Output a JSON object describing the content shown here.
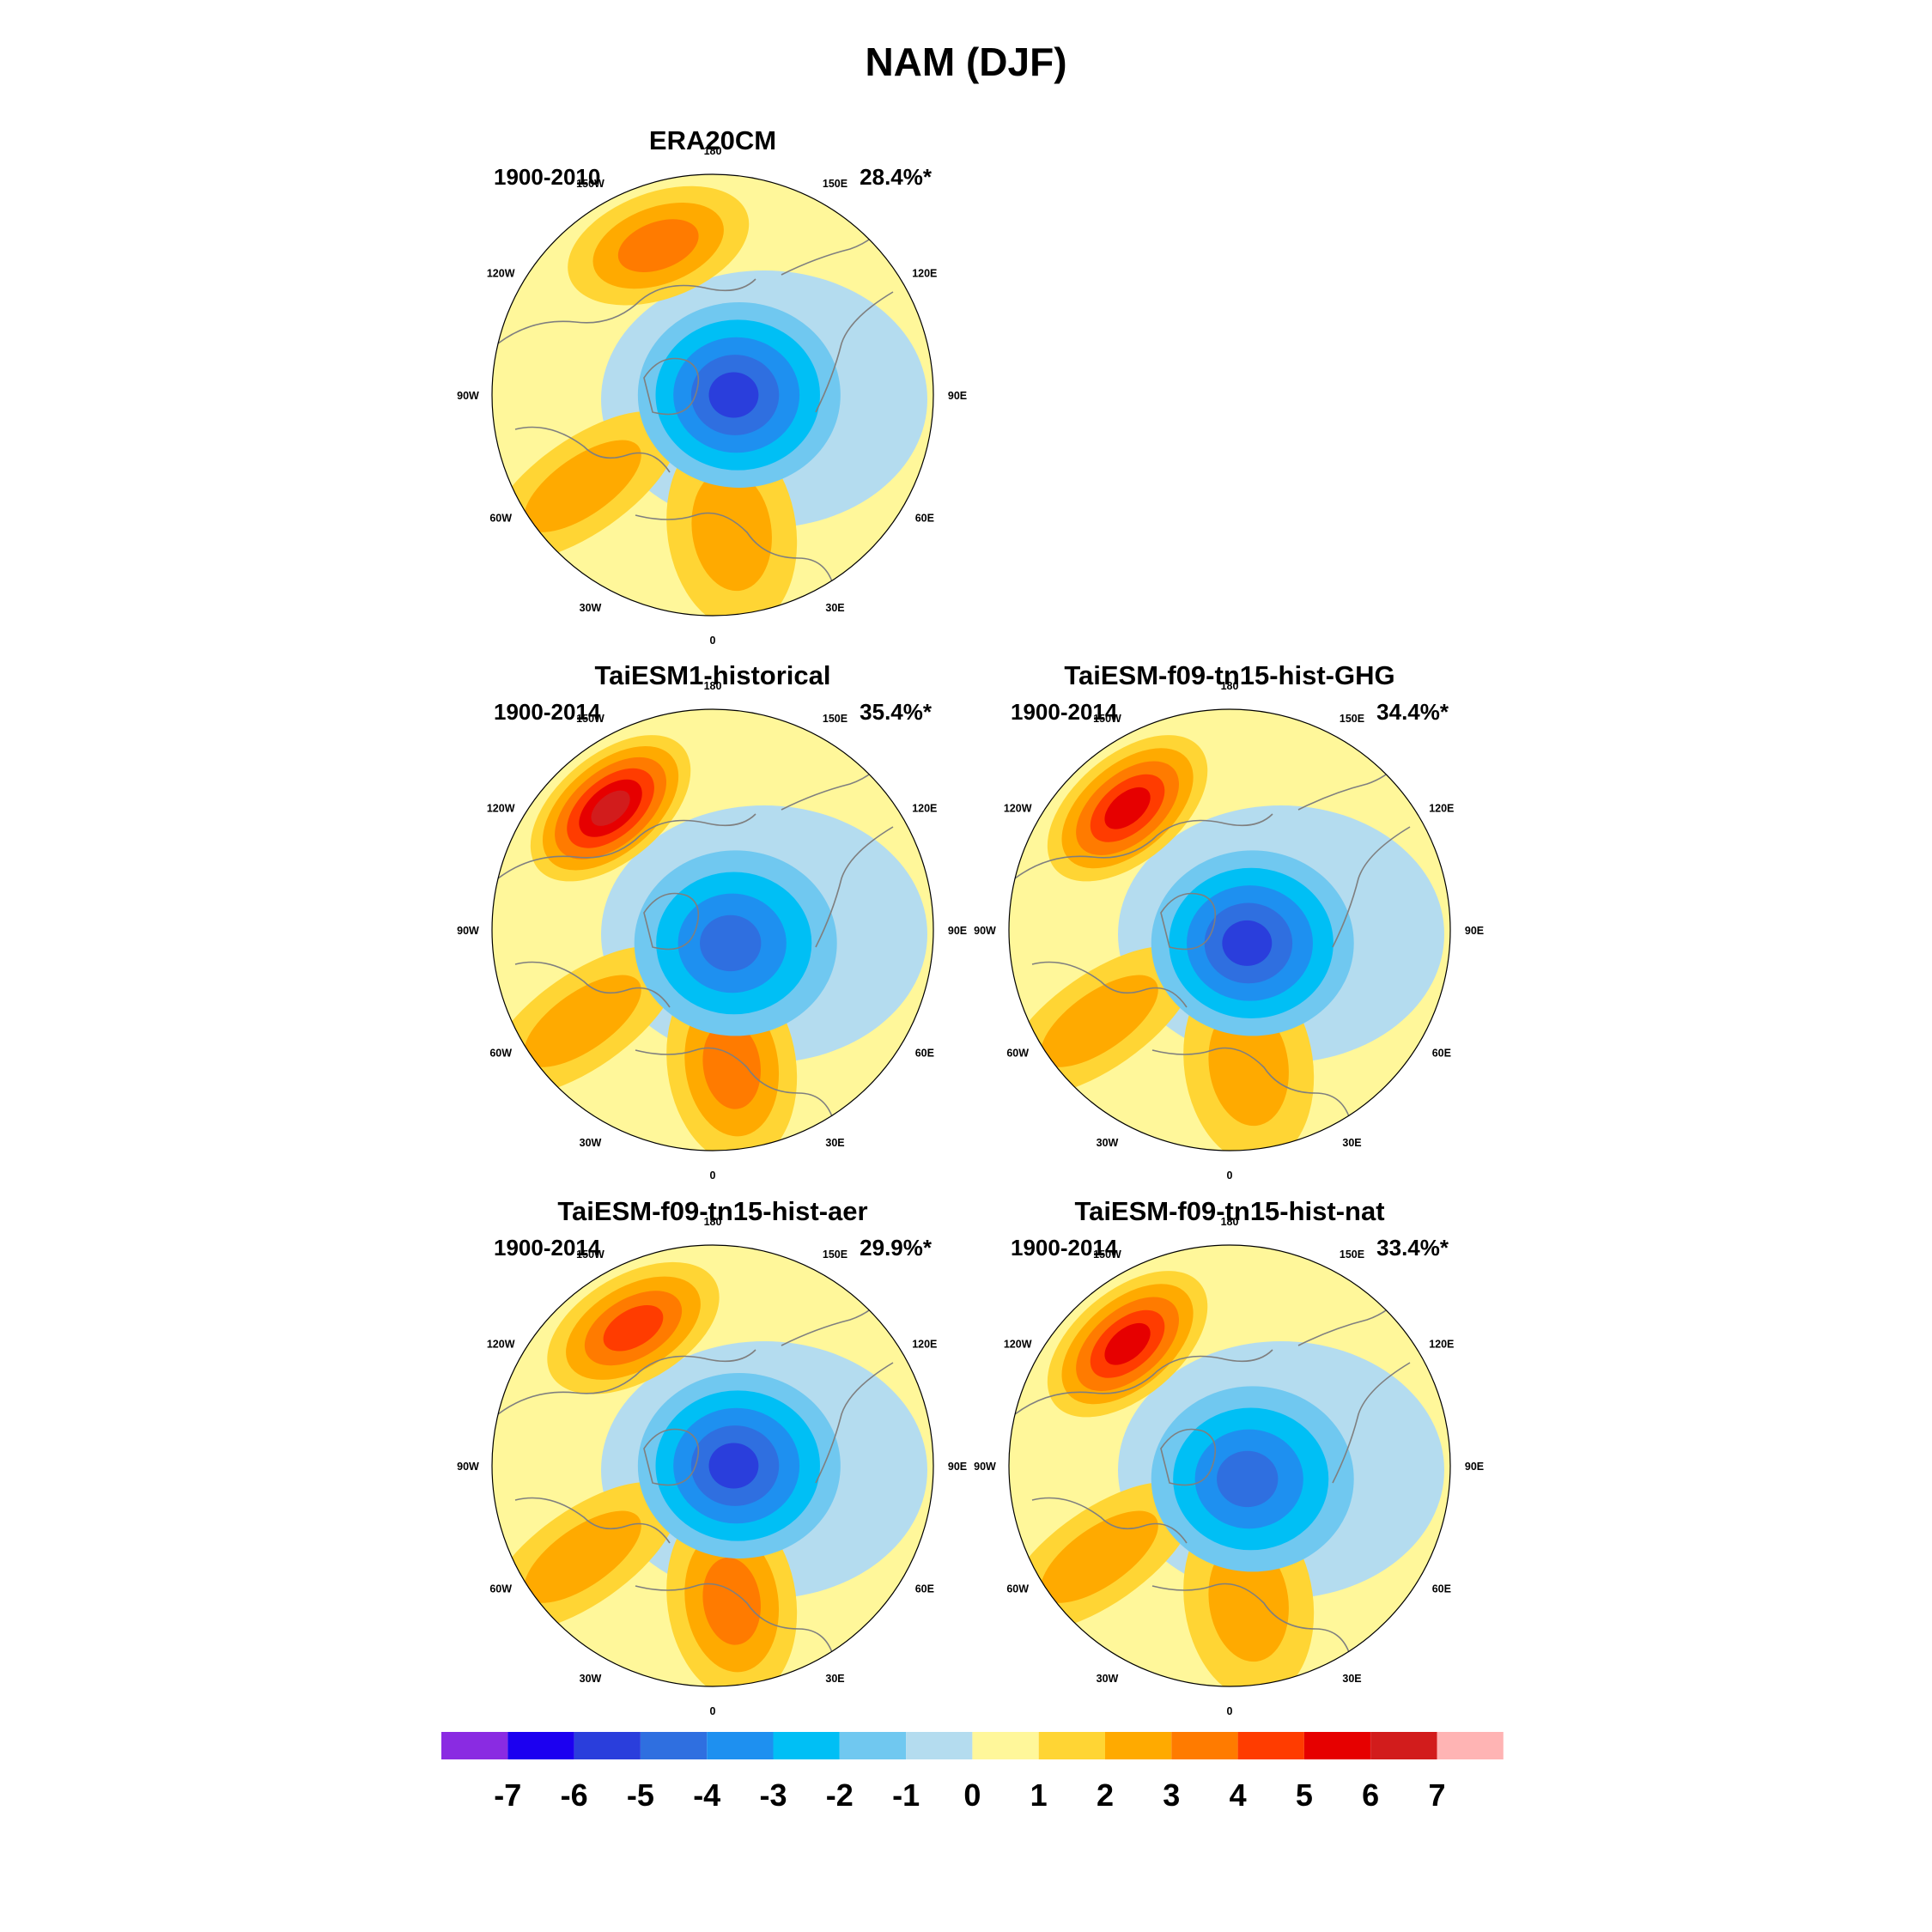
{
  "figure": {
    "title": "NAM (DJF)"
  },
  "longitude_labels": {
    "top": "180",
    "upper_left": "150W",
    "upper_right": "150E",
    "mid_upper_left": "120W",
    "mid_upper_right": "120E",
    "left": "90W",
    "right": "90E",
    "mid_lower_left": "60W",
    "mid_lower_right": "60E",
    "lower_left": "30W",
    "lower_right": "30E",
    "bottom": "0"
  },
  "panels": [
    {
      "id": "era20cm",
      "title": "ERA20CM",
      "period": "1900-2010",
      "variance": "28.4%*",
      "pattern": {
        "polar_low_min": -5.5,
        "pacific_high_max": 3.0,
        "atlantic_high_max": 2.8,
        "polar_low_center_lon": "90E",
        "pacific_high_center_lon": "160W"
      }
    },
    {
      "id": "taiesm1-historical",
      "title": "TaiESM1-historical",
      "period": "1900-2014",
      "variance": "35.4%*",
      "pattern": {
        "polar_low_min": -4.8,
        "pacific_high_max": 6.0,
        "atlantic_high_max": 3.0,
        "polar_low_center_lon": "60E",
        "pacific_high_center_lon": "140W"
      }
    },
    {
      "id": "taiesm-ghg",
      "title": "TaiESM-f09-tn15-hist-GHG",
      "period": "1900-2014",
      "variance": "34.4%*",
      "pattern": {
        "polar_low_min": -5.2,
        "pacific_high_max": 5.0,
        "atlantic_high_max": 2.8,
        "polar_low_center_lon": "60E",
        "pacific_high_center_lon": "140W"
      }
    },
    {
      "id": "taiesm-aer",
      "title": "TaiESM-f09-tn15-hist-aer",
      "period": "1900-2014",
      "variance": "29.9%*",
      "pattern": {
        "polar_low_min": -5.5,
        "pacific_high_max": 4.0,
        "atlantic_high_max": 3.0,
        "polar_low_center_lon": "90E",
        "pacific_high_center_lon": "150W"
      }
    },
    {
      "id": "taiesm-nat",
      "title": "TaiESM-f09-tn15-hist-nat",
      "period": "1900-2014",
      "variance": "33.4%*",
      "pattern": {
        "polar_low_min": -4.8,
        "pacific_high_max": 5.0,
        "atlantic_high_max": 2.2,
        "polar_low_center_lon": "60E",
        "pacific_high_center_lon": "140W"
      }
    }
  ],
  "colorbar": {
    "labels": [
      "-7",
      "-6",
      "-5",
      "-4",
      "-3",
      "-2",
      "-1",
      "0",
      "1",
      "2",
      "3",
      "4",
      "5",
      "6",
      "7"
    ],
    "colors": [
      "#8a2be2",
      "#1c00f0",
      "#2a3edc",
      "#2f6fe0",
      "#1e90f0",
      "#00bff5",
      "#70c8f0",
      "#b4dcef",
      "#fff79a",
      "#ffd534",
      "#ffaa00",
      "#ff7b00",
      "#ff3c00",
      "#e60000",
      "#d21c1c",
      "#ffb4b4"
    ]
  },
  "colors": {
    "land_outline": "#7f7f7f",
    "map_border": "#000000"
  }
}
